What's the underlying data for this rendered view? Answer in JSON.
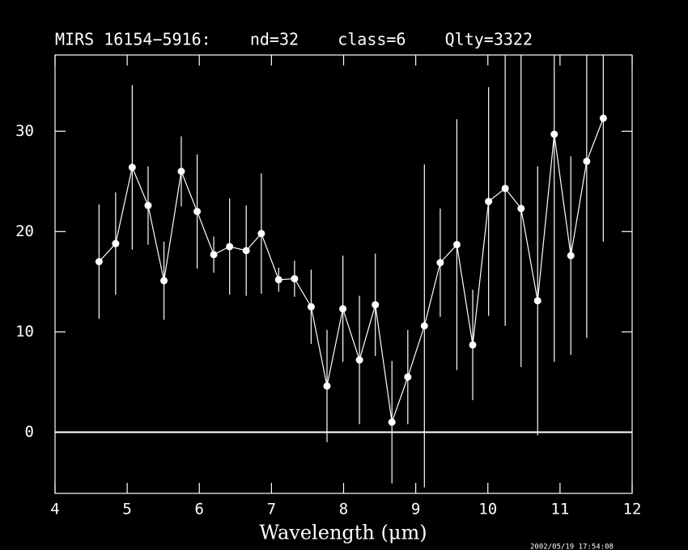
{
  "chart_data": {
    "type": "errorbar",
    "title": "MIRS 16154−5916:    nd=32    class=6    Qlty=3322",
    "x_label": "Wavelength (μm)",
    "timestamp": "2002/05/19 17:54:08",
    "x": [
      4.61,
      4.84,
      5.07,
      5.29,
      5.51,
      5.75,
      5.97,
      6.2,
      6.42,
      6.65,
      6.86,
      7.1,
      7.32,
      7.55,
      7.77,
      7.99,
      8.22,
      8.44,
      8.67,
      8.89,
      9.12,
      9.34,
      9.57,
      9.79,
      10.01,
      10.24,
      10.46,
      10.69,
      10.92,
      11.15,
      11.37,
      11.6
    ],
    "values": [
      17.0,
      18.8,
      26.4,
      22.6,
      15.1,
      26.0,
      22.0,
      17.7,
      18.5,
      18.1,
      19.8,
      15.2,
      15.3,
      12.5,
      4.6,
      12.3,
      7.2,
      12.7,
      1.0,
      5.5,
      10.6,
      16.9,
      18.7,
      8.7,
      23.0,
      24.3,
      22.3,
      13.1,
      29.7,
      17.6,
      27.0,
      31.3
    ],
    "errors": [
      5.7,
      5.1,
      8.2,
      3.9,
      3.9,
      3.5,
      5.7,
      1.8,
      4.8,
      4.5,
      6.0,
      1.2,
      1.8,
      3.7,
      5.6,
      5.3,
      6.4,
      5.1,
      6.1,
      4.7,
      16.1,
      5.4,
      12.5,
      5.5,
      11.4,
      13.7,
      15.8,
      13.4,
      22.7,
      9.9,
      17.6,
      12.3
    ],
    "color": "#ffffff",
    "xlim": [
      4,
      12
    ],
    "ylim": [
      -6.1,
      37.6
    ],
    "xticks": [
      4,
      5,
      6,
      7,
      8,
      9,
      10,
      11,
      12
    ],
    "yticks": [
      0,
      10,
      20,
      30
    ],
    "hline": 0
  }
}
